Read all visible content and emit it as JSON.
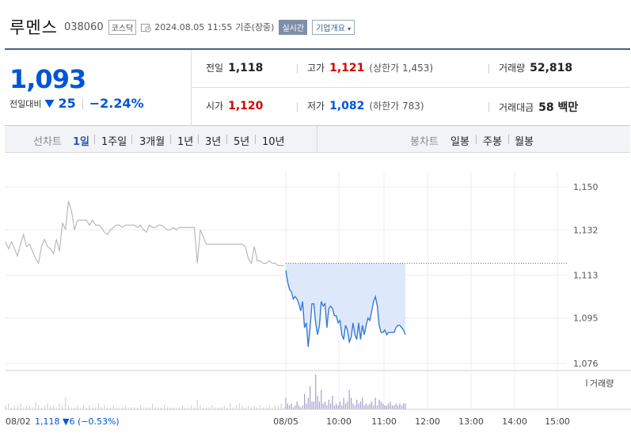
{
  "header": {
    "name": "루멘스",
    "code": "038060",
    "market": "코스닥",
    "datetime": "2024.08.05 11:55",
    "basis": "기준(장중)",
    "realtime_label": "실시간",
    "company_info_label": "기업개요"
  },
  "quote": {
    "price": "1,093",
    "change_label": "전일대비",
    "change": "25",
    "change_pct": "−2.24%",
    "prev_close_label": "전일",
    "prev_close": "1,118",
    "high_label": "고가",
    "high": "1,121",
    "upper_limit": "(상한가 1,453)",
    "volume_label": "거래량",
    "volume": "52,818",
    "open_label": "시가",
    "open": "1,120",
    "low_label": "저가",
    "low": "1,082",
    "lower_limit": "(하한가 783)",
    "value_label": "거래대금",
    "value": "58 백만"
  },
  "tabs": {
    "line_label": "선차트",
    "line_periods": [
      "1일",
      "1주일",
      "3개월",
      "1년",
      "3년",
      "5년",
      "10년"
    ],
    "active_line": "1일",
    "candle_label": "봉차트",
    "candle_periods": [
      "일봉",
      "주봉",
      "월봉"
    ]
  },
  "colors": {
    "up": "#d20000",
    "down": "#0055d6",
    "prev_day_line": "#b4b4b4",
    "today_line": "#3a7ad6",
    "today_fill": "#dde9fb",
    "volume_bar": "#a69cc8"
  },
  "chart_data": {
    "type": "line",
    "y_ticks": [
      "1,150",
      "1,132",
      "1,113",
      "1,095",
      "1,076"
    ],
    "ylim": [
      1073,
      1156
    ],
    "x_ticks": [
      "08/05",
      "10:00",
      "11:00",
      "12:00",
      "13:00",
      "14:00",
      "15:00"
    ],
    "volume_legend": "거래량",
    "footer_prev_date": "08/02",
    "footer_prev_info": "1,118 ▼6 (−0.53%)",
    "reference_price": 1118,
    "series": [
      {
        "session": "08/02",
        "values": [
          1127,
          1124,
          1127,
          1124,
          1121,
          1126,
          1130,
          1125,
          1126,
          1123,
          1120,
          1118,
          1125,
          1128,
          1125,
          1124,
          1122,
          1128,
          1123,
          1135,
          1132,
          1144,
          1140,
          1132,
          1136,
          1136,
          1136,
          1136,
          1134,
          1136,
          1134,
          1134,
          1133,
          1131,
          1130,
          1132,
          1133,
          1134,
          1134,
          1133,
          1134,
          1134,
          1134,
          1134,
          1133,
          1134,
          1132,
          1131,
          1134,
          1133,
          1133,
          1134,
          1134,
          1133,
          1132,
          1132,
          1133,
          1132,
          1133,
          1133,
          1133,
          1133,
          1133,
          1133,
          1118,
          1132,
          1129,
          1126,
          1126,
          1126,
          1126,
          1126,
          1126,
          1126,
          1126,
          1126,
          1126,
          1126,
          1126,
          1126,
          1125,
          1120,
          1118,
          1125,
          1119,
          1119,
          1118,
          1118,
          1119,
          1118,
          1118,
          1117,
          1117,
          1117
        ]
      },
      {
        "session": "08/05",
        "values": [
          1115,
          1110,
          1107,
          1106,
          1103,
          1104,
          1103,
          1101,
          1098,
          1102,
          1091,
          1093,
          1083,
          1091,
          1101,
          1101,
          1093,
          1088,
          1092,
          1102,
          1100,
          1101,
          1091,
          1099,
          1100,
          1099,
          1096,
          1096,
          1093,
          1094,
          1088,
          1086,
          1092,
          1090,
          1085,
          1087,
          1093,
          1088,
          1086,
          1093,
          1086,
          1092,
          1088,
          1092,
          1095,
          1094,
          1098,
          1102,
          1104,
          1100,
          1092,
          1089,
          1089,
          1090,
          1088,
          1089,
          1089,
          1089,
          1089,
          1091,
          1092,
          1092,
          1091,
          1090,
          1088
        ]
      }
    ],
    "volume": {
      "session_08_02": [
        2,
        3,
        1,
        2,
        2,
        3,
        1,
        2,
        2,
        1,
        4,
        2,
        1,
        2,
        3,
        2,
        2,
        1,
        3,
        2,
        6,
        2,
        1,
        1,
        2,
        1,
        2,
        1,
        2,
        1,
        1,
        3,
        1,
        2,
        1,
        1,
        2,
        1,
        1,
        1,
        2,
        1,
        1,
        1,
        1,
        2,
        1,
        1,
        1,
        3,
        1,
        1,
        1,
        2,
        1,
        1,
        1,
        1,
        1,
        2,
        1,
        1,
        2,
        1,
        5,
        2,
        1,
        1,
        1,
        2,
        1,
        1,
        1,
        2,
        1,
        3,
        1,
        2,
        3,
        2,
        1,
        2,
        1,
        2,
        1,
        2,
        1,
        1,
        2,
        1,
        2,
        2,
        3,
        1
      ],
      "session_08_05": [
        6,
        3,
        2,
        3,
        1,
        2,
        4,
        2,
        1,
        2,
        8,
        3,
        6,
        12,
        4,
        4,
        18,
        7,
        4,
        10,
        3,
        4,
        2,
        5,
        3,
        7,
        2,
        3,
        2,
        4,
        2,
        6,
        3,
        4,
        10,
        6,
        3,
        2,
        5,
        3,
        4,
        6,
        2,
        3,
        2,
        3,
        4,
        2,
        6,
        2,
        5,
        4,
        3,
        2,
        2,
        3,
        4,
        2,
        2,
        3,
        2,
        3,
        2,
        3,
        3
      ]
    }
  }
}
